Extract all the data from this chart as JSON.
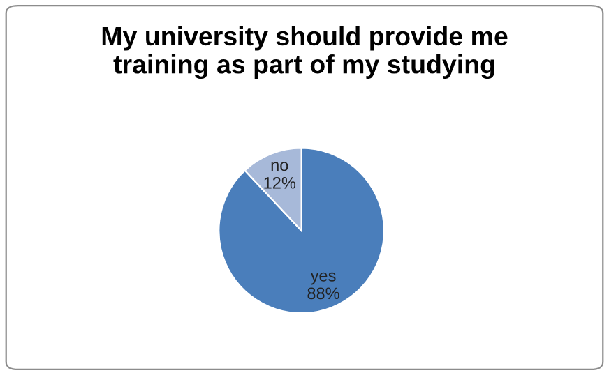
{
  "chart_data": {
    "type": "pie",
    "title": "My university should provide me\ntraining as part of my studying",
    "categories": [
      "yes",
      "no"
    ],
    "values": [
      88,
      12
    ],
    "colors": [
      "#4a7ebb",
      "#a7b9d9"
    ],
    "value_labels": [
      "88%",
      "12%"
    ],
    "legend": false
  }
}
